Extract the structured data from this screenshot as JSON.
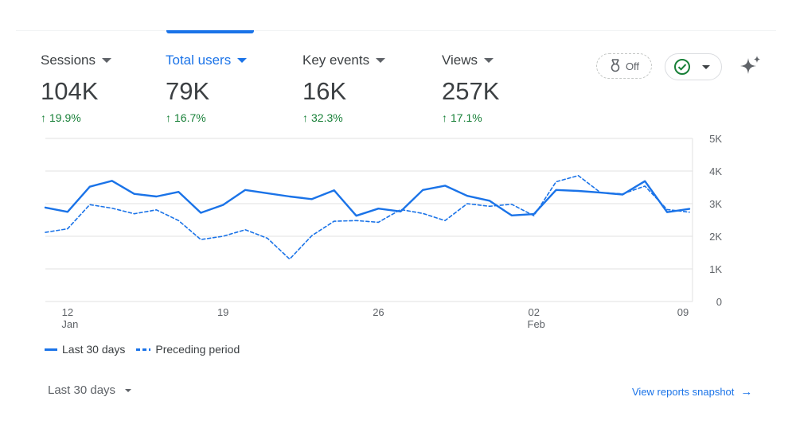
{
  "metrics": [
    {
      "label": "Sessions",
      "value": "104K",
      "change": "19.9%",
      "active": false
    },
    {
      "label": "Total users",
      "value": "79K",
      "change": "16.7%",
      "active": true
    },
    {
      "label": "Key events",
      "value": "16K",
      "change": "32.3%",
      "active": false
    },
    {
      "label": "Views",
      "value": "257K",
      "change": "17.1%",
      "active": false
    }
  ],
  "toolbar": {
    "insights_badge": "Off"
  },
  "colors": {
    "accent": "#1a73e8",
    "positive": "#188038",
    "grid": "#e0e0e0"
  },
  "legend": {
    "current": "Last 30 days",
    "previous": "Preceding period"
  },
  "footer": {
    "date_range": "Last 30 days",
    "snapshot_link": "View reports snapshot"
  },
  "chart_data": {
    "type": "line",
    "x": [
      "Jan 11",
      "Jan 12",
      "Jan 13",
      "Jan 14",
      "Jan 15",
      "Jan 16",
      "Jan 17",
      "Jan 18",
      "Jan 19",
      "Jan 20",
      "Jan 21",
      "Jan 22",
      "Jan 23",
      "Jan 24",
      "Jan 25",
      "Jan 26",
      "Jan 27",
      "Jan 28",
      "Jan 29",
      "Jan 30",
      "Jan 31",
      "Feb 01",
      "Feb 02",
      "Feb 03",
      "Feb 04",
      "Feb 05",
      "Feb 06",
      "Feb 07",
      "Feb 08",
      "Feb 09"
    ],
    "x_ticks": [
      {
        "index": 1,
        "label": "12",
        "sublabel": "Jan"
      },
      {
        "index": 8,
        "label": "19",
        "sublabel": ""
      },
      {
        "index": 15,
        "label": "26",
        "sublabel": ""
      },
      {
        "index": 22,
        "label": "02",
        "sublabel": "Feb"
      },
      {
        "index": 29,
        "label": "09",
        "sublabel": ""
      }
    ],
    "y_ticks": [
      "0",
      "1K",
      "2K",
      "3K",
      "4K",
      "5K"
    ],
    "ylim": [
      0,
      5000
    ],
    "y_axis_position": "right",
    "grid": true,
    "legend_position": "bottom-left",
    "series": [
      {
        "name": "Last 30 days",
        "style": "solid",
        "values": [
          2880,
          2750,
          3520,
          3700,
          3300,
          3220,
          3360,
          2720,
          2960,
          3420,
          3320,
          3220,
          3140,
          3410,
          2630,
          2850,
          2760,
          3420,
          3550,
          3240,
          3090,
          2640,
          2680,
          3420,
          3390,
          3340,
          3280,
          3690,
          2740,
          2840
        ]
      },
      {
        "name": "Preceding period",
        "style": "dashed",
        "values": [
          2120,
          2230,
          2970,
          2860,
          2690,
          2810,
          2480,
          1900,
          2000,
          2200,
          1940,
          1300,
          2020,
          2460,
          2480,
          2430,
          2820,
          2700,
          2480,
          3000,
          2920,
          2980,
          2630,
          3670,
          3860,
          3340,
          3300,
          3540,
          2820,
          2740
        ]
      }
    ]
  }
}
